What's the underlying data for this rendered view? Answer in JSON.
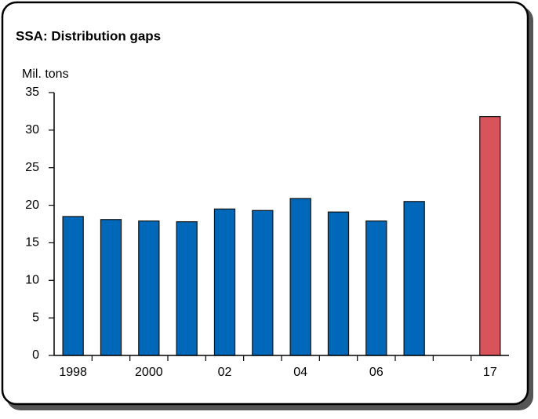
{
  "chart_data": {
    "type": "bar",
    "title": "SSA: Distribution gaps",
    "y_label": "Mil. tons",
    "categories": [
      "1998",
      null,
      "2000",
      null,
      "02",
      null,
      "04",
      null,
      "06",
      null,
      null,
      "17"
    ],
    "values": [
      18.5,
      18.1,
      17.9,
      17.8,
      19.5,
      19.3,
      20.9,
      19.1,
      17.9,
      20.5,
      null,
      31.8
    ],
    "colors": [
      "#0068b8",
      "#0068b8",
      "#0068b8",
      "#0068b8",
      "#0068b8",
      "#0068b8",
      "#0068b8",
      "#0068b8",
      "#0068b8",
      "#0068b8",
      null,
      "#d9545a"
    ],
    "ylim": [
      0,
      35
    ],
    "yticks": [
      0,
      5,
      10,
      15,
      20,
      25,
      30,
      35
    ],
    "grid": false
  }
}
